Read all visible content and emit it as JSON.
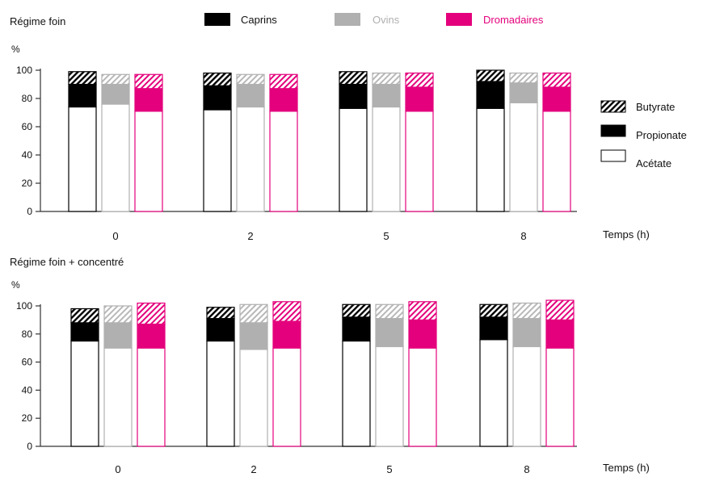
{
  "legend_top": {
    "items": [
      {
        "label": "Caprins",
        "color": "#000000",
        "text_color": "#111111"
      },
      {
        "label": "Ovins",
        "color": "#b0b0b0",
        "text_color": "#b0b0b0"
      },
      {
        "label": "Dromadaires",
        "color": "#e4007c",
        "text_color": "#e4007c"
      }
    ]
  },
  "legend_right": {
    "items": [
      {
        "label": "Butyrate",
        "fill": "hatch"
      },
      {
        "label": "Propionate",
        "fill": "solid"
      },
      {
        "label": "Acétate",
        "fill": "white"
      }
    ]
  },
  "colors": {
    "caprins": "#000000",
    "ovins": "#b0b0b0",
    "dromadaires": "#e4007c",
    "axis": "#333333"
  },
  "chart_data": [
    {
      "type": "bar",
      "stacked": true,
      "title": "Régime foin",
      "ylabel": "%",
      "xlabel": "Temps (h)",
      "ylim": [
        0,
        100
      ],
      "yticks": [
        0,
        20,
        40,
        60,
        80,
        100
      ],
      "categories": [
        "0",
        "2",
        "5",
        "8"
      ],
      "groups": [
        "Caprins",
        "Ovins",
        "Dromadaires"
      ],
      "components": [
        "Acétate",
        "Propionate",
        "Butyrate"
      ],
      "series": [
        {
          "name": "Caprins",
          "Acétate": [
            74,
            72,
            73,
            73
          ],
          "Propionate": [
            16,
            17,
            17,
            19
          ],
          "Butyrate": [
            9,
            9,
            9,
            8
          ]
        },
        {
          "name": "Ovins",
          "Acétate": [
            76,
            74,
            74,
            77
          ],
          "Propionate": [
            14,
            16,
            16,
            14
          ],
          "Butyrate": [
            7,
            7,
            8,
            7
          ]
        },
        {
          "name": "Dromadaires",
          "Acétate": [
            71,
            71,
            71,
            71
          ],
          "Propionate": [
            16,
            16,
            17,
            17
          ],
          "Butyrate": [
            10,
            10,
            10,
            10
          ]
        }
      ]
    },
    {
      "type": "bar",
      "stacked": true,
      "title": "Régime foin + concentré",
      "ylabel": "%",
      "xlabel": "Temps (h)",
      "ylim": [
        0,
        100
      ],
      "yticks": [
        0,
        20,
        40,
        60,
        80,
        100
      ],
      "categories": [
        "0",
        "2",
        "5",
        "8"
      ],
      "groups": [
        "Caprins",
        "Ovins",
        "Dromadaires"
      ],
      "components": [
        "Acétate",
        "Propionate",
        "Butyrate"
      ],
      "series": [
        {
          "name": "Caprins",
          "Acétate": [
            75,
            75,
            75,
            76
          ],
          "Propionate": [
            13,
            16,
            17,
            16
          ],
          "Butyrate": [
            10,
            8,
            9,
            9
          ]
        },
        {
          "name": "Ovins",
          "Acétate": [
            70,
            69,
            71,
            71
          ],
          "Propionate": [
            18,
            19,
            20,
            20
          ],
          "Butyrate": [
            12,
            13,
            10,
            11
          ]
        },
        {
          "name": "Dromadaires",
          "Acétate": [
            70,
            70,
            70,
            70
          ],
          "Propionate": [
            17,
            19,
            20,
            20
          ],
          "Butyrate": [
            15,
            14,
            13,
            14
          ]
        }
      ]
    }
  ]
}
